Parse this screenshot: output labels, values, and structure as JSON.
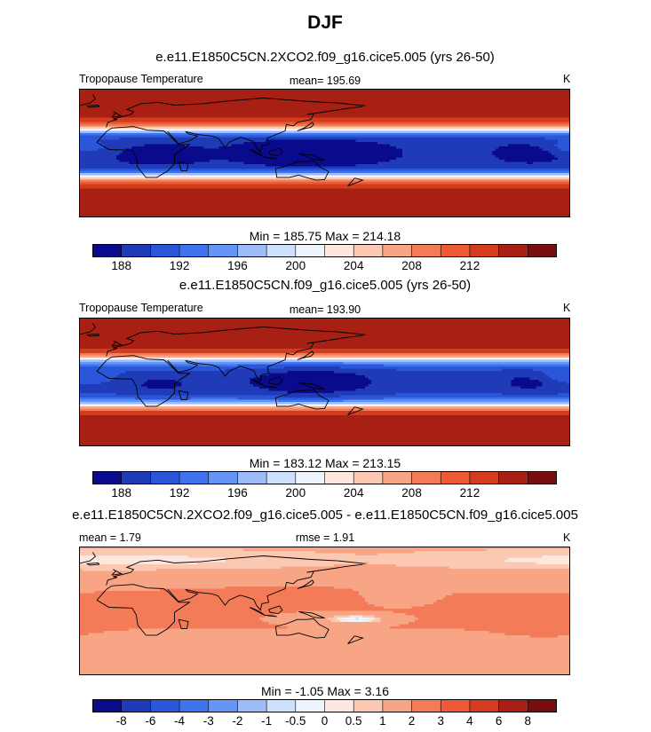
{
  "title": "DJF",
  "colors": {
    "palette": [
      "#0a0a8c",
      "#1f3bb8",
      "#2a57d9",
      "#3e75ee",
      "#6596f5",
      "#9cbbf8",
      "#cde0fb",
      "#eef4fd",
      "#fde7df",
      "#fbc8b2",
      "#f8a586",
      "#f47b57",
      "#ee5a33",
      "#d33d1e",
      "#a82014",
      "#7a0d0d"
    ]
  },
  "chart_data": [
    {
      "type": "heatmap",
      "case_title": "e.e11.E1850C5CN.2XCO2.f09_g16.cice5.005 (yrs 26-50)",
      "field_label": "Tropopause Temperature",
      "stat_label": "mean= 195.69",
      "mean": 195.69,
      "units": "K",
      "minmax_label": "Min = 185.75 Max = 214.18",
      "min": 185.75,
      "max": 214.18,
      "levels": [
        186,
        188,
        190,
        192,
        194,
        196,
        198,
        200,
        202,
        204,
        206,
        208,
        210,
        212,
        214
      ],
      "tick_labels": [
        "188",
        "192",
        "196",
        "200",
        "204",
        "208",
        "212"
      ],
      "tick_boundaries": [
        1,
        3,
        5,
        7,
        9,
        11,
        13
      ]
    },
    {
      "type": "heatmap",
      "case_title": "e.e11.E1850C5CN.f09_g16.cice5.005 (yrs 26-50)",
      "field_label": "Tropopause Temperature",
      "stat_label": "mean= 193.90",
      "mean": 193.9,
      "units": "K",
      "minmax_label": "Min = 183.12 Max = 213.15",
      "min": 183.12,
      "max": 213.15,
      "levels": [
        186,
        188,
        190,
        192,
        194,
        196,
        198,
        200,
        202,
        204,
        206,
        208,
        210,
        212,
        214
      ],
      "tick_labels": [
        "188",
        "192",
        "196",
        "200",
        "204",
        "208",
        "212"
      ],
      "tick_boundaries": [
        1,
        3,
        5,
        7,
        9,
        11,
        13
      ]
    },
    {
      "type": "heatmap",
      "case_title": "e.e11.E1850C5CN.2XCO2.f09_g16.cice5.005 - e.e11.E1850C5CN.f09_g16.cice5.005",
      "mean_label": "mean =   1.79",
      "mean": 1.79,
      "rmse_label": "rmse =   1.91",
      "rmse": 1.91,
      "units": "K",
      "minmax_label": "Min =  -1.05 Max =   3.16",
      "min": -1.05,
      "max": 3.16,
      "levels": [
        -8,
        -6,
        -4,
        -3,
        -2,
        -1,
        -0.5,
        0,
        0.5,
        1,
        2,
        3,
        4,
        6,
        8
      ],
      "tick_labels": [
        "-8",
        "-6",
        "-4",
        "-3",
        "-2",
        "-1",
        "-0.5",
        "0",
        "0.5",
        "1",
        "2",
        "3",
        "4",
        "6",
        "8"
      ],
      "tick_boundaries": [
        1,
        2,
        3,
        4,
        5,
        6,
        7,
        8,
        9,
        10,
        11,
        12,
        13,
        14,
        15
      ]
    }
  ]
}
